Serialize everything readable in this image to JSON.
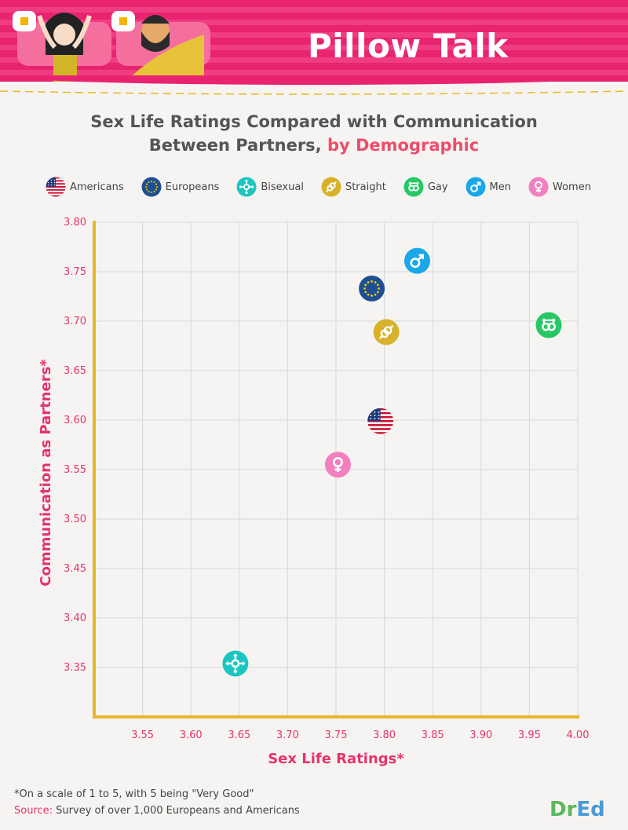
{
  "banner": {
    "title": "Pillow Talk"
  },
  "chart_title": {
    "line1": "Sex Life Ratings Compared with Communication",
    "line2_prefix": "Between Partners, ",
    "line2_accent": "by Demographic"
  },
  "colors": {
    "axis": "#e6b82a",
    "tick_label": "#e5336d",
    "axis_label": "#e5336d",
    "grid": "#d8d8d8",
    "americans": "#c8102e",
    "europeans": "#1f4f93",
    "bisexual": "#1cc6c0",
    "straight": "#d8b22a",
    "gay": "#27c766",
    "men": "#1aa7e8",
    "women": "#f27fbe"
  },
  "legend": [
    {
      "key": "americans",
      "label": "Americans",
      "icon": "us-flag-icon"
    },
    {
      "key": "europeans",
      "label": "Europeans",
      "icon": "eu-flag-icon"
    },
    {
      "key": "bisexual",
      "label": "Bisexual",
      "icon": "bisexual-symbol-icon"
    },
    {
      "key": "straight",
      "label": "Straight",
      "icon": "straight-symbol-icon"
    },
    {
      "key": "gay",
      "label": "Gay",
      "icon": "gay-symbol-icon"
    },
    {
      "key": "men",
      "label": "Men",
      "icon": "male-symbol-icon"
    },
    {
      "key": "women",
      "label": "Women",
      "icon": "female-symbol-icon"
    }
  ],
  "chart_data": {
    "type": "scatter",
    "title": "Sex Life Ratings Compared with Communication Between Partners, by Demographic",
    "xlabel": "Sex Life Ratings*",
    "ylabel": "Communication as Partners*",
    "xlim": [
      3.5,
      4.0
    ],
    "ylim": [
      3.3,
      3.8
    ],
    "xticks": [
      "3.55",
      "3.60",
      "3.65",
      "3.70",
      "3.75",
      "3.80",
      "3.85",
      "3.90",
      "3.95",
      "4.00"
    ],
    "yticks": [
      "3.35",
      "3.40",
      "3.45",
      "3.50",
      "3.55",
      "3.60",
      "3.65",
      "3.70",
      "3.75",
      "3.80"
    ],
    "grid": true,
    "legend_position": "top",
    "points": [
      {
        "series": "Americans",
        "key": "americans",
        "x": 3.796,
        "y": 3.599
      },
      {
        "series": "Europeans",
        "key": "europeans",
        "x": 3.787,
        "y": 3.733
      },
      {
        "series": "Bisexual",
        "key": "bisexual",
        "x": 3.646,
        "y": 3.354
      },
      {
        "series": "Straight",
        "key": "straight",
        "x": 3.802,
        "y": 3.689
      },
      {
        "series": "Gay",
        "key": "gay",
        "x": 3.97,
        "y": 3.696
      },
      {
        "series": "Men",
        "key": "men",
        "x": 3.834,
        "y": 3.761
      },
      {
        "series": "Women",
        "key": "women",
        "x": 3.752,
        "y": 3.555
      }
    ]
  },
  "footnote": "*On a scale of 1 to 5, with 5 being \"Very Good\"",
  "source": {
    "label": "Source:",
    "text": " Survey of over 1,000 Europeans and Americans"
  },
  "brand": {
    "part1": "Dr",
    "part2": "Ed"
  }
}
